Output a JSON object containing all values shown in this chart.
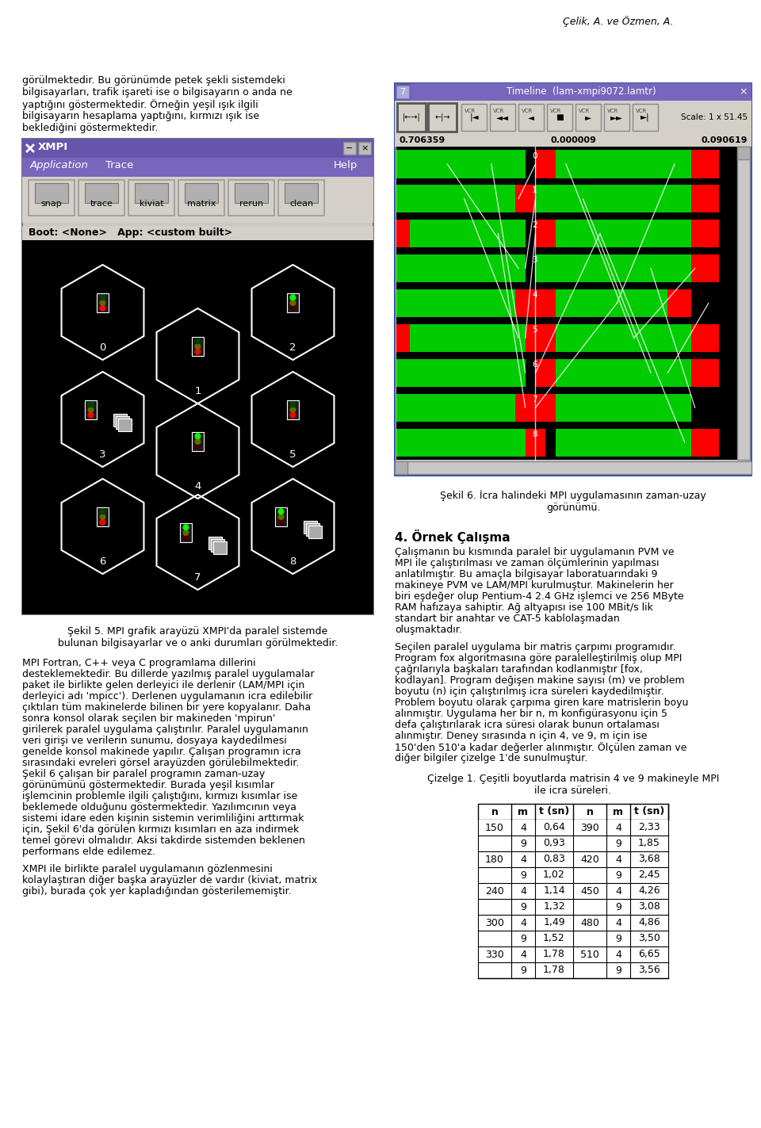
{
  "header_text": "Çelik, A. ve Özmen, A.",
  "top_left_paragraph": "görülmektedir. Bu görünümde petek şekli sistemdeki bilgisayarları, trafik işareti ise o bilgisayarın o anda ne yaptığını göstermektedir. Örneğin yeşil ışık ilgili bilgisayarın hesaplama yaptığını, kırmızı ışık ise beklediğini göstermektedir.",
  "fig5_caption_line1": "Şekil 5. MPI grafik arayüzü XMPI'da paralel sistemde",
  "fig5_caption_line2": "bulunan bilgisayarlar ve o anki durumları görülmektedir.",
  "body_left_lines": [
    "MPI Fortran, C++ veya C programlama dillerini",
    "desteklemektedir. Bu dillerde yazılmış paralel uygulamalar",
    "paket ile birlikte gelen derleyici ile derlenir (LAM/MPI için",
    "derleyici adı 'mpicc'). Derlenen uygulamanın icra edilebilir",
    "çıktıları tüm makinelerde bilinen bir yere kopyalanır. Daha",
    "sonra konsol olarak seçilen bir makineden 'mpirun'",
    "girilerek paralel uygulama çalıştırılır. Paralel uygulamanın",
    "veri girişi ve verilerin sunumu, dosyaya kaydedilmesi",
    "genelde konsol makinede yapılır. Çalışan programın icra",
    "sırasındaki evreleri görsel arayüzden görülebilmektedir.",
    "Şekil 6 çalışan bir paralel programın zaman-uzay",
    "görünümünü göstermektedir. Burada yeşil kısımlar",
    "işlemcinin problemle ilgili çalıştığını, kırmızı kısımlar ise",
    "beklemede olduğunu göstermektedir. Yazılımcının veya",
    "sistemi idare eden kişinin sistemin verimliliğini arttırmak",
    "için, Şekil 6'da görülen kırmızı kısımları en aza indirmek",
    "temel görevi olmalıdır. Aksi takdirde sistemden beklenen",
    "performans elde edilemez.",
    "",
    "XMPI ile birlikte paralel uygulamanın gözlenmesini",
    "kolaylaştıran diğer başka arayüzler de vardır (kiviat, matrix",
    "gibi), burada çok yer kapladığından gösterilememiştir."
  ],
  "fig6_caption_line1": "Şekil 6. İcra halindeki MPI uygulamasının zaman-uzay",
  "fig6_caption_line2": "görünümü.",
  "section4_title": "4. Örnek Çalışma",
  "body_right_lines": [
    "Çalışmanın bu kısmında paralel bir uygulamanın PVM ve",
    "MPI ile çalıştırılması ve zaman ölçümlerinin yapılması",
    "anlatılmıştır. Bu amaçla bilgisayar laboratuarındaki 9",
    "makineye PVM ve LAM/MPI kurulmuştur. Makinelerin her",
    "biri eşdeğer olup Pentium-4 2.4 GHz işlemci ve 256 MByte",
    "RAM hafızaya sahiptir. Ağ altyapısı ise 100 MBit/s lik",
    "standart bir anahtar ve CAT-5 kablolaşmadan",
    "oluşmaktadır.",
    "",
    "Seçilen paralel uygulama bir matris çarpımı programıdır.",
    "Program fox algoritmasına göre paralelleştirilmiş olup MPI",
    "çağrılarıyla başkaları tarafından kodlanmıştır [fox,",
    "kodlayan]. Program değişen makine sayısı (m) ve problem",
    "boyutu (n) için çalıştırılmış icra süreleri kaydedilmiştir.",
    "Problem boyutu olarak çarpıma giren kare matrislerin boyu",
    "alınmıştır. Uygulama her bir n, m konfigürasyonu için 5",
    "defa çalıştırılarak icra süresi olarak bunun ortalaması",
    "alınmıştır. Deney sırasında n için 4, ve 9, m için ise",
    "150'den 510'a kadar değerler alınmıştır. Ölçülen zaman ve",
    "diğer bilgiler çizelge 1'de sunulmuştur."
  ],
  "table_title_line1": "Çizelge 1. Çeşitli boyutlarda matrisin 4 ve 9 makineyle MPI",
  "table_title_line2": "ile icra süreleri.",
  "table_headers": [
    "n",
    "m",
    "t (sn)",
    "n",
    "m",
    "t (sn)"
  ],
  "table_rows": [
    [
      "150",
      "4",
      "0,64",
      "390",
      "4",
      "2,33"
    ],
    [
      "",
      "9",
      "0,93",
      "",
      "9",
      "1,85"
    ],
    [
      "180",
      "4",
      "0,83",
      "420",
      "4",
      "3,68"
    ],
    [
      "",
      "9",
      "1,02",
      "",
      "9",
      "2,45"
    ],
    [
      "240",
      "4",
      "1,14",
      "450",
      "4",
      "4,26"
    ],
    [
      "",
      "9",
      "1,32",
      "",
      "9",
      "3,08"
    ],
    [
      "300",
      "4",
      "1,49",
      "480",
      "4",
      "4,86"
    ],
    [
      "",
      "9",
      "1,52",
      "",
      "9",
      "3,50"
    ],
    [
      "330",
      "4",
      "1,78",
      "510",
      "4",
      "6,65"
    ],
    [
      "",
      "9",
      "1,78",
      "",
      "9",
      "3,56"
    ]
  ],
  "win_title_color": "#6655aa",
  "menu_bar_color": "#7766bb",
  "toolbar_bg": "#d4d0c8",
  "canvas_bg": "#000000",
  "trace_window_border": "#3344aa",
  "timeline_bar_color": "#7766bb",
  "vcr_bar_color": "#d4d0c8"
}
